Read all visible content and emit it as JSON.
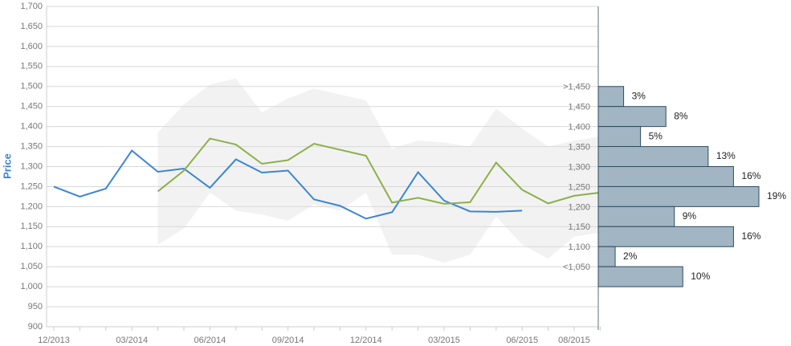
{
  "chart_data": [
    {
      "type": "line",
      "y_label": "Price",
      "categories": [
        "12/2013",
        null,
        null,
        "03/2014",
        null,
        null,
        "06/2014",
        null,
        null,
        "09/2014",
        null,
        null,
        "12/2014",
        null,
        null,
        "03/2015",
        null,
        null,
        "06/2015",
        null,
        "08/2015",
        null
      ],
      "series": [
        {
          "color": "#3a85d4",
          "values": [
            1250,
            1225,
            1245,
            1340,
            1287,
            1295,
            1247,
            1318,
            1285,
            1290,
            1218,
            1202,
            1170,
            1186,
            1286,
            1215,
            1188,
            1187,
            1190,
            null,
            null,
            null
          ]
        },
        {
          "color": "#8cb04a",
          "values": [
            null,
            null,
            null,
            null,
            1238,
            1290,
            1370,
            1355,
            1307,
            1316,
            1357,
            1342,
            1327,
            1210,
            1222,
            1207,
            1211,
            1310,
            1242,
            1208,
            1227,
            1235
          ]
        }
      ],
      "band": {
        "color": "#f2f2f2",
        "upper": [
          null,
          null,
          null,
          null,
          1385,
          1455,
          1505,
          1520,
          1435,
          1470,
          1495,
          1480,
          1465,
          1345,
          1365,
          1360,
          1350,
          1445,
          1395,
          1350,
          1365,
          1375
        ],
        "lower": [
          null,
          null,
          null,
          null,
          1105,
          1145,
          1235,
          1190,
          1180,
          1165,
          1205,
          1190,
          1235,
          1080,
          1080,
          1060,
          1080,
          1175,
          1105,
          1070,
          1125,
          1135
        ]
      },
      "ylim": [
        900,
        1700
      ],
      "yticks": [
        900,
        950,
        {
          "value": 1000,
          "label": "1,000"
        },
        {
          "value": 1050,
          "label": "1,050"
        },
        {
          "value": 1100,
          "label": "1,100"
        },
        {
          "value": 1150,
          "label": "1,150"
        },
        {
          "value": 1200,
          "label": "1,200"
        },
        {
          "value": 1250,
          "label": "1,250"
        },
        {
          "value": 1300,
          "label": "1,300"
        },
        {
          "value": 1350,
          "label": "1,350"
        },
        {
          "value": 1400,
          "label": "1,400"
        },
        {
          "value": 1450,
          "label": "1,450"
        },
        {
          "value": 1500,
          "label": "1,500"
        },
        {
          "value": 1550,
          "label": "1,550"
        },
        {
          "value": 1600,
          "label": "1,600"
        },
        {
          "value": 1650,
          "label": "1,650"
        },
        {
          "value": 1700,
          "label": "1,700"
        }
      ],
      "grid": true
    },
    {
      "type": "bar",
      "orientation": "horizontal",
      "categories": [
        ">1,450",
        "1,450",
        "1,400",
        "1,350",
        "1,300",
        "1,250",
        "1,200",
        "1,150",
        "1,100",
        "<1,050"
      ],
      "values": [
        3,
        8,
        5,
        13,
        16,
        19,
        9,
        16,
        2,
        10
      ],
      "value_labels": [
        "3%",
        "8%",
        "5%",
        "13%",
        "16%",
        "19%",
        "9%",
        "16%",
        "2%",
        "10%"
      ],
      "color": "#a1b5c3",
      "edgecolor": "#2f4b60"
    }
  ]
}
